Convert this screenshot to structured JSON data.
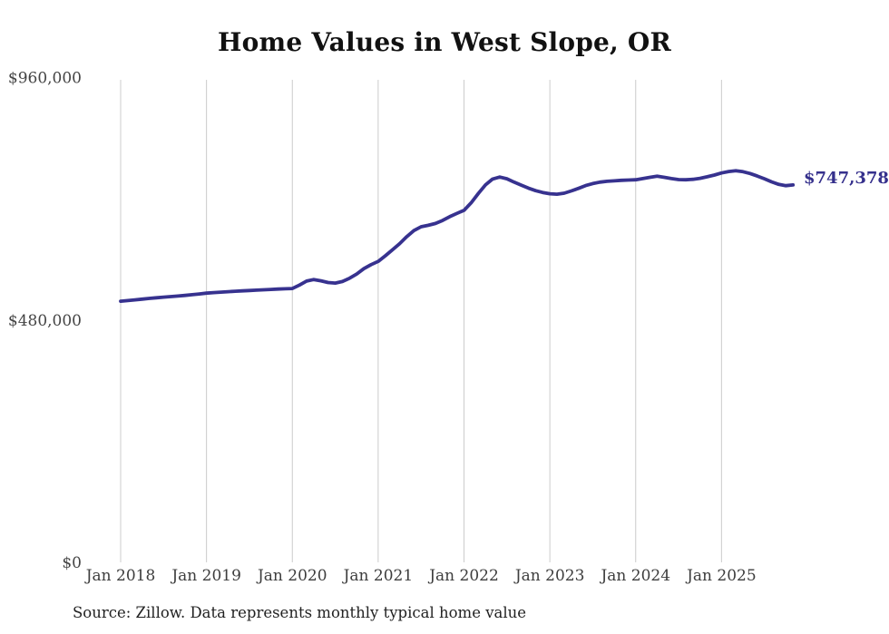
{
  "chart": {
    "title": "Home Values in West Slope, OR",
    "end_label": "$747,378",
    "source_note": "Source: Zillow. Data represents monthly typical home value",
    "colors": {
      "line": "#37328f",
      "end_label": "#35308c",
      "gridline": "#cccccc",
      "title": "#111111",
      "axis_label": "#444444",
      "source": "#222222",
      "background": "#ffffff"
    }
  },
  "chart_data": {
    "type": "line",
    "title": "Home Values in West Slope, OR",
    "unit": "USD",
    "xlabel": "",
    "ylabel": "",
    "ylim": [
      0,
      960000
    ],
    "grid": "vertical-only",
    "legend": "none",
    "y_ticks": [
      {
        "label": "$960,000",
        "value": 960000
      },
      {
        "label": "$480,000",
        "value": 480000
      },
      {
        "label": "$0",
        "value": 0
      }
    ],
    "x_ticks": [
      {
        "label": "Jan 2018"
      },
      {
        "label": "Jan 2019"
      },
      {
        "label": "Jan 2020"
      },
      {
        "label": "Jan 2021"
      },
      {
        "label": "Jan 2022"
      },
      {
        "label": "Jan 2023"
      },
      {
        "label": "Jan 2024"
      },
      {
        "label": "Jan 2025"
      }
    ],
    "series": [
      {
        "name": "Typical home value",
        "start": "Jan 2018",
        "frequency": "monthly",
        "final_value": 747378,
        "final_label": "$747,378",
        "values": [
          517000,
          518400,
          519800,
          521200,
          522600,
          524000,
          525200,
          526300,
          527400,
          528600,
          530000,
          531500,
          533000,
          534100,
          535100,
          536000,
          536800,
          537600,
          538300,
          539000,
          539700,
          540400,
          541100,
          541700,
          542300,
          549000,
          557000,
          560000,
          557500,
          554000,
          553000,
          556000,
          562500,
          571000,
          581500,
          589500,
          596000,
          607000,
          619000,
          631000,
          645000,
          657000,
          664500,
          667500,
          671000,
          677000,
          684500,
          691000,
          697000,
          712000,
          730500,
          747500,
          759000,
          763000,
          759500,
          753000,
          747000,
          741000,
          736000,
          732500,
          730000,
          729000,
          731000,
          735500,
          740500,
          746000,
          750000,
          753000,
          754500,
          755500,
          756500,
          757000,
          757500,
          760000,
          762500,
          764500,
          762500,
          760000,
          758000,
          757500,
          758500,
          760500,
          763500,
          767000,
          771000,
          774000,
          775500,
          773500,
          770000,
          765000,
          759500,
          753500,
          748500,
          745900,
          747378
        ]
      }
    ]
  }
}
